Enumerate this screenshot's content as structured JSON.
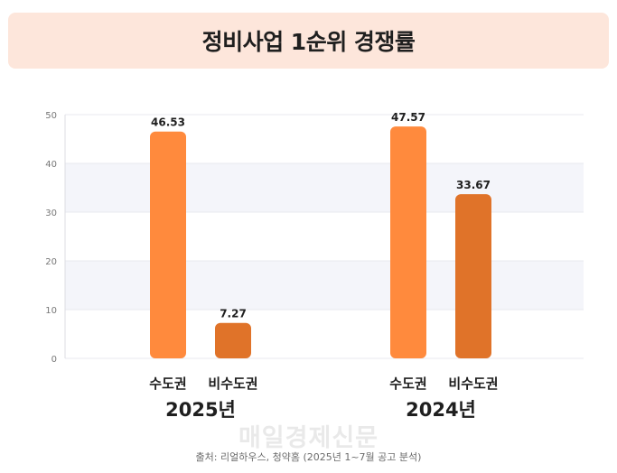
{
  "title": "정비사업 1순위 경쟁률",
  "watermark": "매일경제신문",
  "source": "출처: 리얼하우스, 청약홈 (2025년 1~7월 공고 분석)",
  "colors": {
    "title_bg": "#fde6db",
    "bar_capital": "#ff8a3d",
    "bar_noncapital": "#e07329",
    "grid_band": "#f4f5fa"
  },
  "chart_data": {
    "type": "bar",
    "title": "정비사업 1순위 경쟁률",
    "groups": [
      {
        "label": "2025년",
        "bars": [
          {
            "category": "수도권",
            "value": 46.53,
            "label": "46.53"
          },
          {
            "category": "비수도권",
            "value": 7.27,
            "label": "7.27"
          }
        ]
      },
      {
        "label": "2024년",
        "bars": [
          {
            "category": "수도권",
            "value": 47.57,
            "label": "47.57"
          },
          {
            "category": "비수도권",
            "value": 33.67,
            "label": "33.67"
          }
        ]
      }
    ],
    "yticks": [
      "0",
      "10",
      "20",
      "30",
      "40",
      "50"
    ],
    "ylim": [
      0,
      50
    ],
    "grid": true,
    "xlabel": "",
    "ylabel": ""
  }
}
